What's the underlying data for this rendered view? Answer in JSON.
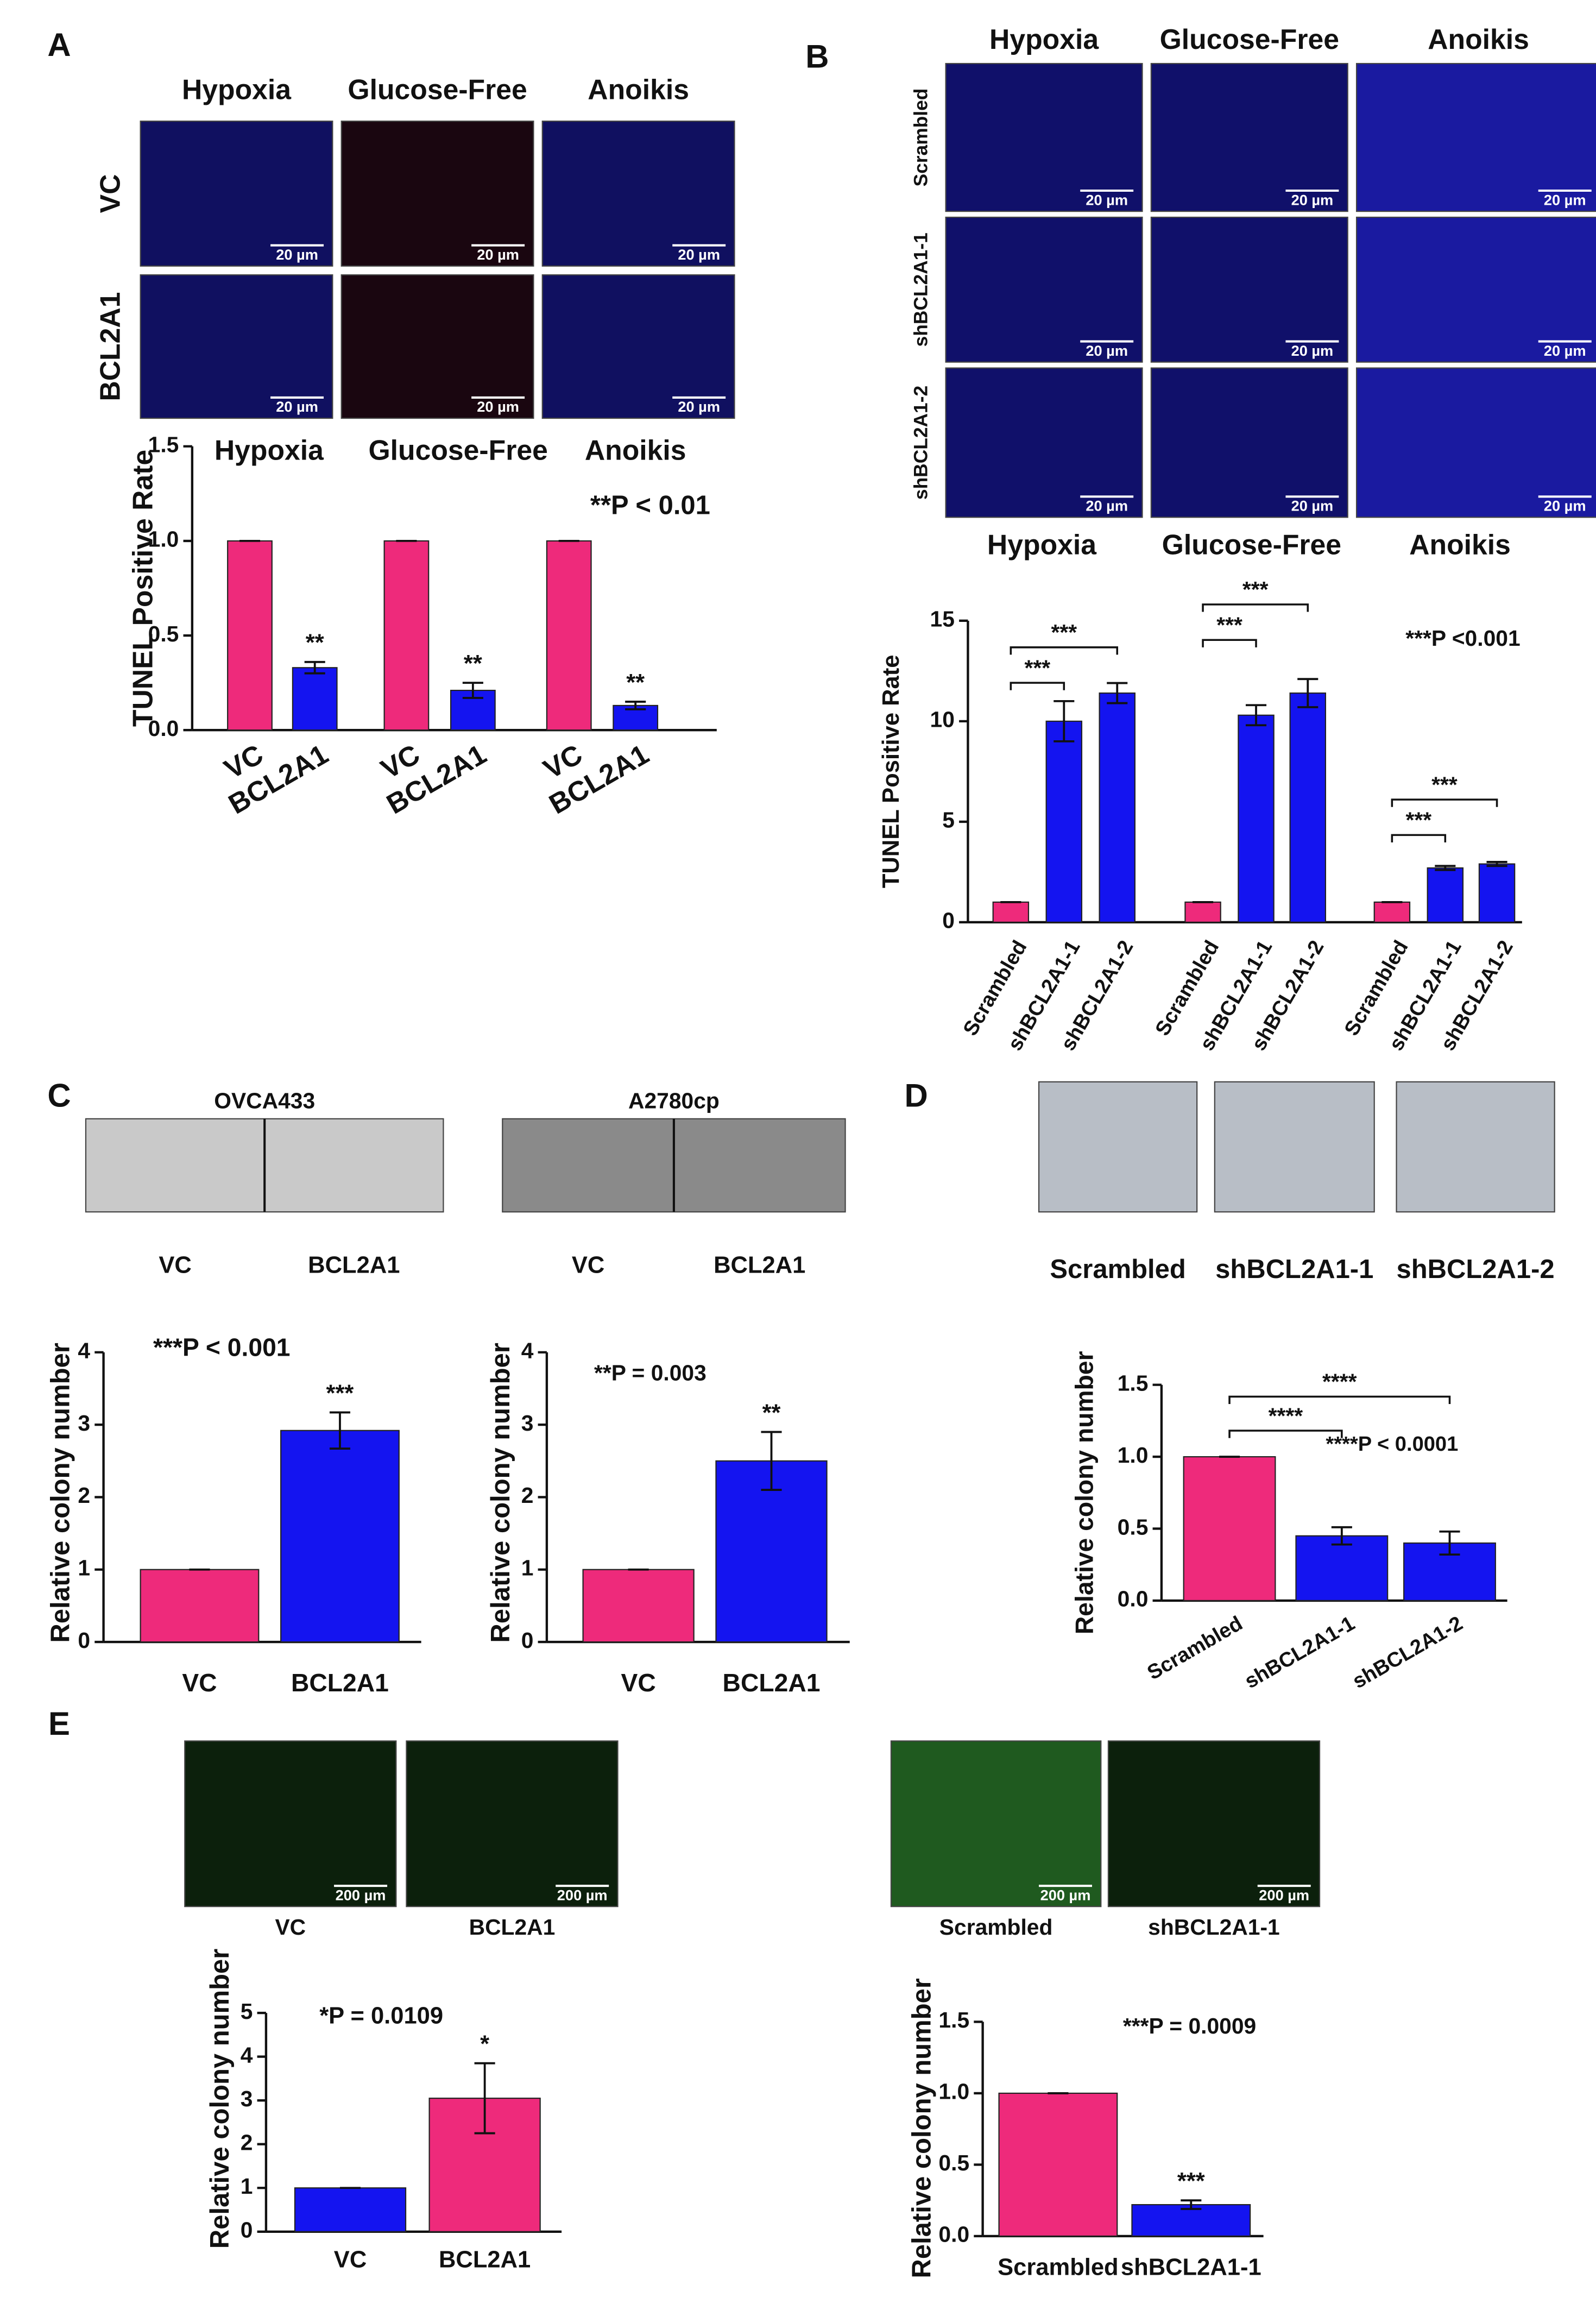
{
  "panels": {
    "A": {
      "letter": "A",
      "columns": [
        "Hypoxia",
        "Glucose-Free",
        "Anoikis"
      ],
      "rows": [
        "VC",
        "BCL2A1"
      ],
      "scale_bar": "20 µm"
    },
    "B": {
      "letter": "B",
      "columns": [
        "Hypoxia",
        "Glucose-Free",
        "Anoikis"
      ],
      "rows": [
        "Scrambled",
        "shBCL2A1-1",
        "shBCL2A1-2"
      ],
      "scale_bar": "20 µm"
    },
    "C": {
      "letter": "C",
      "images": [
        {
          "title": "OVCA433",
          "labels": [
            "VC",
            "BCL2A1"
          ]
        },
        {
          "title": "A2780cp",
          "labels": [
            "VC",
            "BCL2A1"
          ]
        }
      ]
    },
    "D": {
      "letter": "D",
      "labels": [
        "Scrambled",
        "shBCL2A1-1",
        "shBCL2A1-2"
      ]
    },
    "E": {
      "letter": "E",
      "images": [
        {
          "labels": [
            "VC",
            "BCL2A1"
          ]
        },
        {
          "labels": [
            "Scrambled",
            "shBCL2A1-1"
          ]
        }
      ],
      "scale_bar": "200 µm"
    }
  },
  "chart_data": [
    {
      "type": "bar",
      "y_label": "TUNEL Positive Rate",
      "ylim": [
        0,
        1.5
      ],
      "yticks": [
        {
          "value": 0,
          "label": "0.0"
        },
        0.5,
        {
          "value": 1,
          "label": "1.0"
        },
        1.5
      ],
      "annotation": "**P < 0.01",
      "groups": [
        {
          "title": "Hypoxia",
          "categories": [
            "VC",
            "BCL2A1"
          ],
          "values": [
            1.0,
            0.33
          ],
          "errors": [
            0,
            0.03
          ],
          "colors": [
            "#ee2a7b",
            "#1414f0"
          ],
          "significance": [
            null,
            "**"
          ]
        },
        {
          "title": "Glucose-Free",
          "categories": [
            "VC",
            "BCL2A1"
          ],
          "values": [
            1.0,
            0.21
          ],
          "errors": [
            0,
            0.04
          ],
          "colors": [
            "#ee2a7b",
            "#1414f0"
          ],
          "significance": [
            null,
            "**"
          ]
        },
        {
          "title": "Anoikis",
          "categories": [
            "VC",
            "BCL2A1"
          ],
          "values": [
            1.0,
            0.13
          ],
          "errors": [
            0,
            0.02
          ],
          "colors": [
            "#ee2a7b",
            "#1414f0"
          ],
          "significance": [
            null,
            "**"
          ]
        }
      ]
    },
    {
      "type": "bar",
      "y_label": "TUNEL Positive Rate",
      "ylim": [
        0,
        15
      ],
      "yticks": [
        0,
        5,
        10,
        15
      ],
      "annotation": "***P <0.001",
      "groups": [
        {
          "title": "Hypoxia",
          "categories": [
            "Scrambled",
            "shBCL2A1-1",
            "shBCL2A1-2"
          ],
          "values": [
            1,
            10.0,
            11.4
          ],
          "errors": [
            0,
            1.0,
            0.5
          ],
          "colors": [
            "#ee2a7b",
            "#1414f0",
            "#1414f0"
          ],
          "brackets": [
            null,
            "***",
            "***"
          ]
        },
        {
          "title": "Glucose-Free",
          "categories": [
            "Scrambled",
            "shBCL2A1-1",
            "shBCL2A1-2"
          ],
          "values": [
            1,
            10.3,
            11.4
          ],
          "errors": [
            0,
            0.5,
            0.7
          ],
          "colors": [
            "#ee2a7b",
            "#1414f0",
            "#1414f0"
          ],
          "brackets": [
            null,
            "***",
            "***"
          ]
        },
        {
          "title": "Anoikis",
          "categories": [
            "Scrambled",
            "shBCL2A1-1",
            "shBCL2A1-2"
          ],
          "values": [
            1,
            2.7,
            2.9
          ],
          "errors": [
            0,
            0.1,
            0.1
          ],
          "colors": [
            "#ee2a7b",
            "#1414f0",
            "#1414f0"
          ],
          "brackets": [
            null,
            "***",
            "***"
          ]
        }
      ]
    },
    {
      "type": "bar",
      "y_label": "Relative colony number",
      "ylim": [
        0,
        4
      ],
      "yticks": [
        0,
        1,
        2,
        3,
        4
      ],
      "annotation": "***P < 0.001",
      "groups": [
        {
          "categories": [
            "VC",
            "BCL2A1"
          ],
          "values": [
            1,
            2.92
          ],
          "errors": [
            0,
            0.25
          ],
          "colors": [
            "#ee2a7b",
            "#1414f0"
          ],
          "significance": [
            null,
            "***"
          ]
        }
      ]
    },
    {
      "type": "bar",
      "y_label": "Relative colony number",
      "ylim": [
        0,
        4
      ],
      "yticks": [
        0,
        1,
        2,
        3,
        4
      ],
      "annotation": "**P = 0.003",
      "groups": [
        {
          "categories": [
            "VC",
            "BCL2A1"
          ],
          "values": [
            1,
            2.5
          ],
          "errors": [
            0,
            0.4
          ],
          "colors": [
            "#ee2a7b",
            "#1414f0"
          ],
          "significance": [
            null,
            "**"
          ]
        }
      ]
    },
    {
      "type": "bar",
      "y_label": "Relative colony number",
      "ylim": [
        0,
        1.5
      ],
      "yticks": [
        {
          "value": 0,
          "label": "0.0"
        },
        0.5,
        {
          "value": 1,
          "label": "1.0"
        },
        1.5
      ],
      "annotation": "****P < 0.0001",
      "groups": [
        {
          "categories": [
            "Scrambled",
            "shBCL2A1-1",
            "shBCL2A1-2"
          ],
          "values": [
            1,
            0.45,
            0.4
          ],
          "errors": [
            0,
            0.06,
            0.08
          ],
          "colors": [
            "#ee2a7b",
            "#1414f0",
            "#1414f0"
          ],
          "brackets": [
            null,
            "****",
            "****"
          ]
        }
      ]
    },
    {
      "type": "bar",
      "y_label": "Relative colony number",
      "ylim": [
        0,
        5
      ],
      "yticks": [
        0,
        1,
        2,
        3,
        4,
        5
      ],
      "annotation": "*P = 0.0109",
      "groups": [
        {
          "categories": [
            "VC",
            "BCL2A1"
          ],
          "values": [
            1,
            3.05
          ],
          "errors": [
            0,
            0.8
          ],
          "colors": [
            "#1414f0",
            "#ee2a7b"
          ],
          "significance": [
            null,
            "*"
          ]
        }
      ]
    },
    {
      "type": "bar",
      "y_label": "Relative colony number",
      "ylim": [
        0,
        1.5
      ],
      "yticks": [
        {
          "value": 0,
          "label": "0.0"
        },
        0.5,
        {
          "value": 1,
          "label": "1.0"
        },
        1.5
      ],
      "annotation": "***P = 0.0009",
      "groups": [
        {
          "categories": [
            "Scrambled",
            "shBCL2A1-1"
          ],
          "values": [
            1,
            0.22
          ],
          "errors": [
            0,
            0.03
          ],
          "colors": [
            "#ee2a7b",
            "#1414f0"
          ],
          "significance": [
            null,
            "***"
          ]
        }
      ]
    }
  ]
}
